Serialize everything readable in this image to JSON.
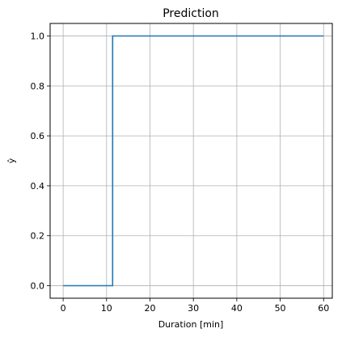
{
  "chart_data": {
    "type": "line",
    "title": "Prediction",
    "xlabel": "Duration [min]",
    "ylabel": "ŷ",
    "xlim": [
      -3,
      62
    ],
    "ylim": [
      -0.05,
      1.05
    ],
    "x_ticks": [
      0,
      10,
      20,
      30,
      40,
      50,
      60
    ],
    "y_ticks": [
      0.0,
      0.2,
      0.4,
      0.6,
      0.8,
      1.0
    ],
    "x_tick_labels": [
      "0",
      "10",
      "20",
      "30",
      "40",
      "50",
      "60"
    ],
    "y_tick_labels": [
      "0.0",
      "0.2",
      "0.4",
      "0.6",
      "0.8",
      "1.0"
    ],
    "grid": true,
    "series": [
      {
        "color": "#1f77b4",
        "x": [
          0,
          11.4,
          11.4,
          60
        ],
        "y": [
          0,
          0,
          1,
          1
        ]
      }
    ]
  }
}
